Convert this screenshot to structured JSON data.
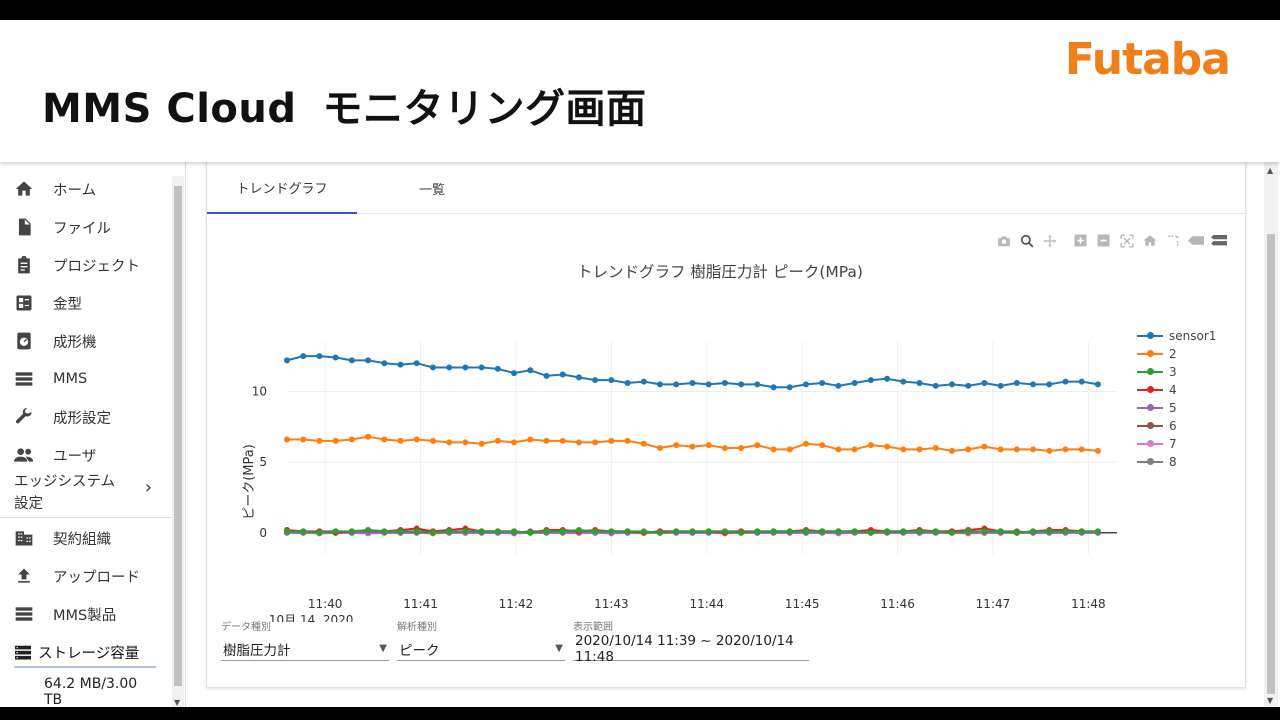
{
  "banner": {
    "title_en": "MMS Cloud",
    "title_jp": "モニタリング画面",
    "logo": "Futaba",
    "logo_color": "#ee7f1a"
  },
  "sidebar": {
    "items": [
      {
        "label": "ホーム",
        "icon": "home-icon"
      },
      {
        "label": "ファイル",
        "icon": "file-icon"
      },
      {
        "label": "プロジェクト",
        "icon": "clipboard-icon"
      },
      {
        "label": "金型",
        "icon": "grid-icon"
      },
      {
        "label": "成形機",
        "icon": "gauge-icon"
      },
      {
        "label": "MMS",
        "icon": "list-icon"
      },
      {
        "label": "成形設定",
        "icon": "wrench-icon"
      },
      {
        "label": "ユーザ",
        "icon": "users-icon"
      }
    ],
    "edge": {
      "line1": "エッジシステム",
      "line2": "設定",
      "icon": "chevron-right-icon"
    },
    "items2": [
      {
        "label": "契約組織",
        "icon": "building-icon"
      },
      {
        "label": "アップロード",
        "icon": "upload-icon"
      },
      {
        "label": "MMS製品",
        "icon": "list-icon"
      }
    ],
    "storage": {
      "label": "ストレージ容量",
      "value": "64.2 MB/3.00 TB",
      "icon": "storage-icon"
    }
  },
  "tabs": [
    {
      "label": "トレンドグラフ",
      "active": true
    },
    {
      "label": "一覧",
      "active": false
    }
  ],
  "modebar": [
    "camera-icon",
    "zoom-icon",
    "pan-icon",
    "zoom-in-icon",
    "zoom-out-icon",
    "autoscale-icon",
    "reset-axes-icon",
    "spike-lines-icon",
    "hover-closest-icon",
    "hover-compare-icon"
  ],
  "filters": [
    {
      "label": "データ種別",
      "value": "樹脂圧力計"
    },
    {
      "label": "解析種別",
      "value": "ピーク"
    },
    {
      "label": "表示範囲",
      "value": "2020/10/14 11:39 ~ 2020/10/14 11:48"
    }
  ],
  "chart_data": {
    "type": "line",
    "title": "トレンドグラフ 樹脂圧力計 ピーク(MPa)",
    "ylabel": "ピーク(MPa)",
    "xlabel": "",
    "x_ticks": [
      "11:40",
      "11:41",
      "11:42",
      "11:43",
      "11:44",
      "11:45",
      "11:46",
      "11:47",
      "11:48"
    ],
    "x_first_tick_sublabel": "10月 14, 2020",
    "y_ticks": [
      0,
      5,
      10
    ],
    "xlim_minutes": [
      39.6,
      48.3
    ],
    "ylim": [
      -1.5,
      13.5
    ],
    "legend_position": "right",
    "series": [
      {
        "name": "sensor1",
        "color": "#1f77b4",
        "values": [
          12.2,
          12.5,
          12.5,
          12.4,
          12.2,
          12.2,
          12.0,
          11.9,
          12.0,
          11.7,
          11.7,
          11.7,
          11.7,
          11.6,
          11.3,
          11.5,
          11.1,
          11.2,
          11.0,
          10.8,
          10.8,
          10.6,
          10.7,
          10.5,
          10.5,
          10.6,
          10.5,
          10.6,
          10.5,
          10.5,
          10.3,
          10.3,
          10.5,
          10.6,
          10.4,
          10.6,
          10.8,
          10.9,
          10.7,
          10.6,
          10.4,
          10.5,
          10.4,
          10.6,
          10.4,
          10.6,
          10.5,
          10.5,
          10.7,
          10.7,
          10.5
        ]
      },
      {
        "name": "2",
        "color": "#ff7f0e",
        "values": [
          6.6,
          6.6,
          6.5,
          6.5,
          6.6,
          6.8,
          6.6,
          6.5,
          6.6,
          6.5,
          6.4,
          6.4,
          6.3,
          6.5,
          6.4,
          6.6,
          6.5,
          6.5,
          6.4,
          6.4,
          6.5,
          6.5,
          6.3,
          6.0,
          6.2,
          6.1,
          6.2,
          6.0,
          6.0,
          6.2,
          5.9,
          5.9,
          6.3,
          6.2,
          5.9,
          5.9,
          6.2,
          6.1,
          5.9,
          5.9,
          6.0,
          5.8,
          5.9,
          6.1,
          5.9,
          5.9,
          5.9,
          5.8,
          5.9,
          5.9,
          5.8
        ]
      },
      {
        "name": "3",
        "color": "#2ca02c",
        "values": [
          0.1,
          0.1,
          0.0,
          0.1,
          0.1,
          0.2,
          0.1,
          0.1,
          0.1,
          0.0,
          0.1,
          0.1,
          0.1,
          0.1,
          0.1,
          0.0,
          0.1,
          0.1,
          0.2,
          0.1,
          0.1,
          0.1,
          0.1,
          0.0,
          0.1,
          0.1,
          0.1,
          0.1,
          0.0,
          0.1,
          0.1,
          0.1,
          0.1,
          0.1,
          0.1,
          0.1,
          0.0,
          0.1,
          0.1,
          0.1,
          0.1,
          0.0,
          0.1,
          0.1,
          0.1,
          0.0,
          0.1,
          0.1,
          0.1,
          0.1,
          0.1
        ]
      },
      {
        "name": "4",
        "color": "#d62728",
        "values": [
          0.2,
          0.1,
          0.1,
          0.0,
          0.1,
          0.2,
          0.1,
          0.2,
          0.3,
          0.1,
          0.2,
          0.3,
          0.1,
          0.1,
          0.1,
          0.0,
          0.2,
          0.2,
          0.1,
          0.2,
          0.1,
          0.1,
          0.0,
          0.1,
          0.1,
          0.1,
          0.1,
          0.0,
          0.1,
          0.1,
          0.1,
          0.1,
          0.2,
          0.1,
          0.1,
          0.1,
          0.2,
          0.1,
          0.1,
          0.2,
          0.1,
          0.1,
          0.2,
          0.3,
          0.1,
          0.0,
          0.1,
          0.2,
          0.2,
          0.1,
          0.1
        ]
      },
      {
        "name": "5",
        "color": "#9467bd",
        "values": [
          0.0,
          0.0,
          0.0,
          0.0,
          0.0,
          0.0,
          0.0,
          0.0,
          0.0,
          0.0,
          0.0,
          0.0,
          0.0,
          0.0,
          0.0,
          0.0,
          0.0,
          0.0,
          0.0,
          0.0,
          0.0,
          0.0,
          0.0,
          0.0,
          0.0,
          0.0,
          0.0,
          0.0,
          0.0,
          0.0,
          0.0,
          0.0,
          0.0,
          0.0,
          0.0,
          0.0,
          0.0,
          0.0,
          0.0,
          0.0,
          0.0,
          0.0,
          0.0,
          0.0,
          0.0,
          0.0,
          0.0,
          0.0,
          0.0,
          0.0,
          0.0
        ]
      },
      {
        "name": "6",
        "color": "#8c564b",
        "values": [
          0.1,
          0.0,
          0.1,
          0.1,
          0.0,
          0.1,
          0.1,
          0.0,
          0.1,
          0.1,
          0.1,
          0.0,
          0.1,
          0.1,
          0.0,
          0.1,
          0.1,
          0.1,
          0.0,
          0.1,
          0.1,
          0.1,
          0.0,
          0.1,
          0.1,
          0.0,
          0.1,
          0.1,
          0.1,
          0.0,
          0.1,
          0.1,
          0.0,
          0.1,
          0.1,
          0.1,
          0.0,
          0.1,
          0.1,
          0.0,
          0.1,
          0.1,
          0.1,
          0.0,
          0.1,
          0.1,
          0.0,
          0.1,
          0.1,
          0.1,
          0.0
        ]
      },
      {
        "name": "7",
        "color": "#e377c2",
        "values": [
          0.0,
          0.0,
          -0.05,
          0.0,
          0.0,
          -0.05,
          0.0,
          0.0,
          0.0,
          -0.05,
          0.0,
          0.0,
          0.0,
          0.0,
          -0.05,
          0.0,
          0.0,
          0.0,
          0.0,
          0.0,
          -0.05,
          0.0,
          0.0,
          0.0,
          0.0,
          0.0,
          0.0,
          -0.05,
          0.0,
          0.0,
          0.0,
          0.0,
          0.0,
          0.0,
          -0.05,
          0.0,
          0.0,
          0.0,
          0.0,
          0.0,
          0.0,
          0.0,
          -0.05,
          0.0,
          0.0,
          0.0,
          0.0,
          0.0,
          0.0,
          0.0,
          0.0
        ]
      },
      {
        "name": "8",
        "color": "#7f7f7f",
        "values": [
          0.0,
          0.0,
          0.0,
          0.0,
          0.0,
          0.0,
          0.0,
          0.0,
          0.0,
          0.0,
          0.0,
          0.0,
          0.0,
          0.0,
          0.0,
          0.0,
          0.0,
          0.0,
          0.0,
          0.0,
          0.0,
          0.0,
          0.0,
          0.0,
          0.0,
          0.0,
          0.0,
          0.0,
          0.0,
          0.0,
          0.0,
          0.0,
          0.0,
          0.0,
          0.0,
          0.0,
          0.0,
          0.0,
          0.0,
          0.0,
          0.0,
          0.0,
          0.0,
          0.0,
          0.0,
          0.0,
          0.0,
          0.0,
          0.0,
          0.0,
          0.0
        ]
      }
    ]
  }
}
